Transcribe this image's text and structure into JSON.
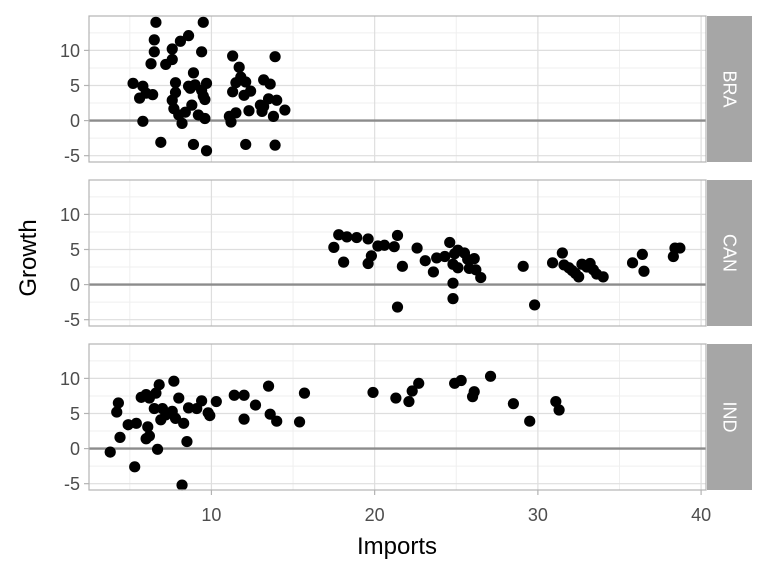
{
  "chart_data": {
    "type": "scatter",
    "xlabel": "Imports",
    "ylabel": "Growth",
    "xlim": [
      2.5,
      40.3
    ],
    "ylim": [
      -5.9,
      14.9
    ],
    "x_ticks": [
      10,
      20,
      30,
      40
    ],
    "y_ticks": [
      -5,
      0,
      5,
      10
    ],
    "reference_line_y": 0,
    "grid": true,
    "colors": {
      "point": "#000000",
      "strip": "#a6a6a6",
      "strip_text": "#ffffff",
      "panel_border": "#b3b3b3",
      "grid_major": "#dedede",
      "grid_minor": "#efefef",
      "zero_line": "#8c8c8c"
    },
    "facets": [
      {
        "label": "BRA",
        "points": [
          [
            6.6,
            14.0
          ],
          [
            9.5,
            14.0
          ],
          [
            6.5,
            11.5
          ],
          [
            8.1,
            11.3
          ],
          [
            8.6,
            12.1
          ],
          [
            6.5,
            9.8
          ],
          [
            7.6,
            10.2
          ],
          [
            9.4,
            9.8
          ],
          [
            11.3,
            9.2
          ],
          [
            13.9,
            9.1
          ],
          [
            6.3,
            8.1
          ],
          [
            7.2,
            8.0
          ],
          [
            7.6,
            8.7
          ],
          [
            11.7,
            7.6
          ],
          [
            8.9,
            6.8
          ],
          [
            11.8,
            6.2
          ],
          [
            11.5,
            5.4
          ],
          [
            12.1,
            5.5
          ],
          [
            13.2,
            5.8
          ],
          [
            5.2,
            5.3
          ],
          [
            5.8,
            4.9
          ],
          [
            7.8,
            5.4
          ],
          [
            9.0,
            5.1
          ],
          [
            9.7,
            5.3
          ],
          [
            6.0,
            3.9
          ],
          [
            5.6,
            3.2
          ],
          [
            6.4,
            3.7
          ],
          [
            7.8,
            4.0
          ],
          [
            8.7,
            4.6
          ],
          [
            9.4,
            4.3
          ],
          [
            11.3,
            4.1
          ],
          [
            12.0,
            3.6
          ],
          [
            12.4,
            4.2
          ],
          [
            13.5,
            3.1
          ],
          [
            14.0,
            2.9
          ],
          [
            7.6,
            2.9
          ],
          [
            9.5,
            3.5
          ],
          [
            9.6,
            3.0
          ],
          [
            13.2,
            2.0
          ],
          [
            13.6,
            5.2
          ],
          [
            13.1,
            1.3
          ],
          [
            7.7,
            1.7
          ],
          [
            8.4,
            1.2
          ],
          [
            8.8,
            2.2
          ],
          [
            12.3,
            1.4
          ],
          [
            14.5,
            1.5
          ],
          [
            11.5,
            1.1
          ],
          [
            8.0,
            0.8
          ],
          [
            9.2,
            0.8
          ],
          [
            11.1,
            0.6
          ],
          [
            13.8,
            0.6
          ],
          [
            5.8,
            -0.1
          ],
          [
            8.2,
            -0.4
          ],
          [
            9.6,
            0.3
          ],
          [
            11.2,
            -0.2
          ],
          [
            6.9,
            -3.1
          ],
          [
            8.9,
            -3.4
          ],
          [
            12.1,
            -3.4
          ],
          [
            13.9,
            -3.5
          ],
          [
            9.7,
            -4.3
          ],
          [
            8.6,
            4.9
          ],
          [
            13.0,
            2.2
          ]
        ]
      },
      {
        "label": "CAN",
        "points": [
          [
            17.8,
            7.1
          ],
          [
            18.3,
            6.8
          ],
          [
            18.9,
            6.7
          ],
          [
            19.6,
            6.5
          ],
          [
            21.4,
            7.0
          ],
          [
            24.6,
            6.0
          ],
          [
            17.5,
            5.3
          ],
          [
            20.2,
            5.5
          ],
          [
            20.6,
            5.6
          ],
          [
            21.2,
            5.4
          ],
          [
            22.6,
            5.2
          ],
          [
            25.1,
            4.9
          ],
          [
            19.8,
            4.1
          ],
          [
            24.9,
            4.4
          ],
          [
            25.5,
            4.5
          ],
          [
            23.8,
            3.8
          ],
          [
            24.3,
            4.0
          ],
          [
            25.7,
            3.6
          ],
          [
            26.1,
            3.7
          ],
          [
            18.1,
            3.2
          ],
          [
            19.6,
            3.0
          ],
          [
            21.7,
            2.6
          ],
          [
            23.1,
            3.4
          ],
          [
            24.8,
            2.9
          ],
          [
            25.1,
            2.4
          ],
          [
            25.8,
            2.3
          ],
          [
            26.2,
            2.1
          ],
          [
            23.6,
            1.8
          ],
          [
            26.5,
            1.0
          ],
          [
            24.8,
            0.2
          ],
          [
            29.1,
            2.6
          ],
          [
            30.9,
            3.1
          ],
          [
            31.5,
            4.5
          ],
          [
            31.6,
            2.8
          ],
          [
            31.9,
            2.4
          ],
          [
            32.1,
            2.0
          ],
          [
            32.3,
            1.6
          ],
          [
            32.5,
            1.1
          ],
          [
            32.7,
            2.9
          ],
          [
            33.0,
            2.5
          ],
          [
            33.2,
            3.0
          ],
          [
            33.4,
            2.1
          ],
          [
            33.6,
            1.5
          ],
          [
            34.0,
            1.1
          ],
          [
            35.8,
            3.1
          ],
          [
            36.4,
            4.3
          ],
          [
            36.5,
            1.9
          ],
          [
            38.3,
            4.0
          ],
          [
            38.4,
            5.2
          ],
          [
            38.7,
            5.2
          ],
          [
            24.8,
            -2.0
          ],
          [
            21.4,
            -3.2
          ],
          [
            29.8,
            -2.9
          ]
        ]
      },
      {
        "label": "IND",
        "points": [
          [
            4.3,
            6.5
          ],
          [
            4.2,
            5.2
          ],
          [
            6.0,
            7.7
          ],
          [
            6.6,
            7.9
          ],
          [
            7.7,
            9.6
          ],
          [
            6.8,
            9.1
          ],
          [
            5.7,
            7.3
          ],
          [
            6.2,
            7.2
          ],
          [
            7.0,
            5.7
          ],
          [
            7.2,
            4.8
          ],
          [
            7.6,
            5.3
          ],
          [
            8.0,
            7.2
          ],
          [
            8.6,
            5.8
          ],
          [
            9.1,
            5.7
          ],
          [
            9.4,
            6.8
          ],
          [
            9.8,
            5.1
          ],
          [
            10.3,
            6.7
          ],
          [
            11.4,
            7.6
          ],
          [
            12.0,
            7.6
          ],
          [
            12.7,
            6.2
          ],
          [
            13.5,
            8.9
          ],
          [
            15.7,
            7.9
          ],
          [
            13.6,
            4.9
          ],
          [
            14.0,
            3.9
          ],
          [
            15.4,
            3.8
          ],
          [
            12.0,
            4.2
          ],
          [
            9.9,
            4.7
          ],
          [
            4.9,
            3.4
          ],
          [
            5.4,
            3.6
          ],
          [
            6.1,
            3.1
          ],
          [
            6.5,
            5.7
          ],
          [
            6.9,
            4.1
          ],
          [
            7.8,
            4.3
          ],
          [
            8.3,
            3.6
          ],
          [
            4.4,
            1.6
          ],
          [
            6.0,
            1.4
          ],
          [
            6.2,
            1.8
          ],
          [
            8.5,
            1.0
          ],
          [
            3.8,
            -0.5
          ],
          [
            6.7,
            -0.1
          ],
          [
            5.3,
            -2.6
          ],
          [
            8.2,
            -5.2
          ],
          [
            19.9,
            8.0
          ],
          [
            21.3,
            7.2
          ],
          [
            22.1,
            6.7
          ],
          [
            22.3,
            8.2
          ],
          [
            22.7,
            9.3
          ],
          [
            24.9,
            9.3
          ],
          [
            25.3,
            9.7
          ],
          [
            26.1,
            8.1
          ],
          [
            26.0,
            7.4
          ],
          [
            27.1,
            10.3
          ],
          [
            28.5,
            6.4
          ],
          [
            29.5,
            3.9
          ],
          [
            31.1,
            6.7
          ],
          [
            31.3,
            5.5
          ]
        ]
      }
    ]
  }
}
